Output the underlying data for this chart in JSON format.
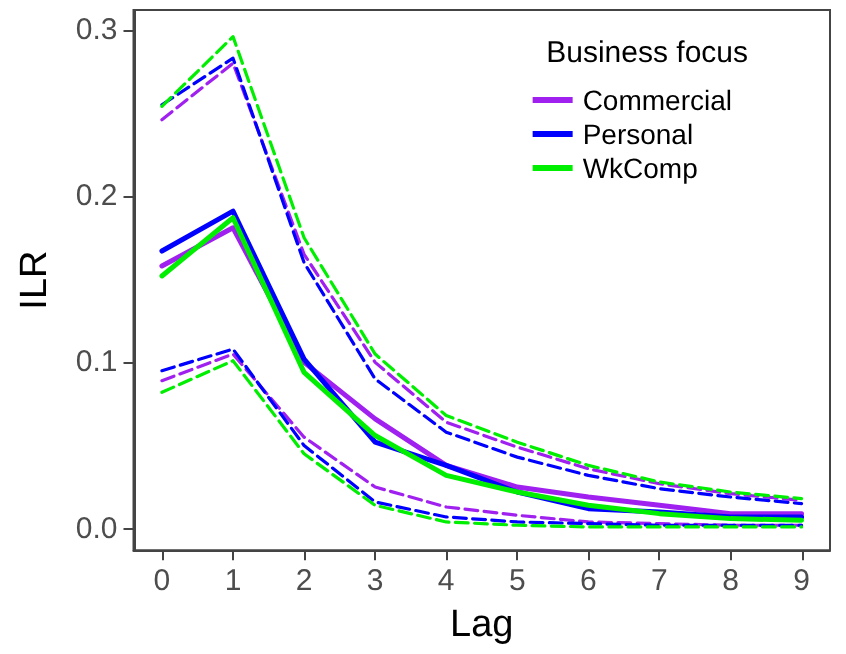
{
  "chart_data": {
    "type": "line",
    "xlabel": "Lag",
    "ylabel": "ILR",
    "legend_title": "Business focus",
    "legend": "top right",
    "grid": false,
    "marker": "none",
    "x": [
      0,
      1,
      2,
      3,
      4,
      5,
      6,
      7,
      8,
      9
    ],
    "xlim": [
      -0.4,
      9.4
    ],
    "xticks": [
      0,
      1,
      2,
      3,
      4,
      5,
      6,
      7,
      8,
      9
    ],
    "ylim": [
      -0.013,
      0.312
    ],
    "yticks": [
      {
        "value": 0,
        "label": "0.0"
      },
      0.1,
      0.2,
      0.3
    ],
    "series": [
      {
        "name": "Commercial",
        "color": "#a020f0",
        "values": [
          0.158,
          0.181,
          0.1,
          0.066,
          0.038,
          0.025,
          0.019,
          0.014,
          0.009,
          0.009
        ]
      },
      {
        "name": "Personal",
        "color": "#0000ff",
        "values": [
          0.167,
          0.191,
          0.102,
          0.052,
          0.038,
          0.022,
          0.012,
          0.01,
          0.007,
          0.007
        ]
      },
      {
        "name": "WkComp",
        "color": "#00ee00",
        "values": [
          0.152,
          0.187,
          0.094,
          0.056,
          0.032,
          0.022,
          0.014,
          0.009,
          0.006,
          0.005
        ]
      },
      {
        "color": "#a020f0",
        "line_style": "dashed",
        "values": [
          0.246,
          0.28,
          0.165,
          0.1,
          0.064,
          0.049,
          0.036,
          0.027,
          0.021,
          0.017
        ]
      },
      {
        "color": "#0000ff",
        "line_style": "dashed",
        "values": [
          0.255,
          0.283,
          0.16,
          0.09,
          0.058,
          0.043,
          0.032,
          0.024,
          0.019,
          0.015
        ]
      },
      {
        "color": "#00ee00",
        "line_style": "dashed",
        "values": [
          0.254,
          0.296,
          0.175,
          0.105,
          0.068,
          0.052,
          0.038,
          0.028,
          0.022,
          0.018
        ]
      },
      {
        "color": "#a020f0",
        "line_style": "dashed",
        "values": [
          0.089,
          0.105,
          0.055,
          0.025,
          0.013,
          0.008,
          0.004,
          0.003,
          0.002,
          0.002
        ]
      },
      {
        "color": "#0000ff",
        "line_style": "dashed",
        "values": [
          0.095,
          0.108,
          0.05,
          0.016,
          0.007,
          0.004,
          0.003,
          0.002,
          0.002,
          0.002
        ]
      },
      {
        "color": "#00ee00",
        "line_style": "dashed",
        "values": [
          0.082,
          0.101,
          0.045,
          0.014,
          0.004,
          0.002,
          0.001,
          0.001,
          0.001,
          0.001
        ]
      }
    ]
  }
}
